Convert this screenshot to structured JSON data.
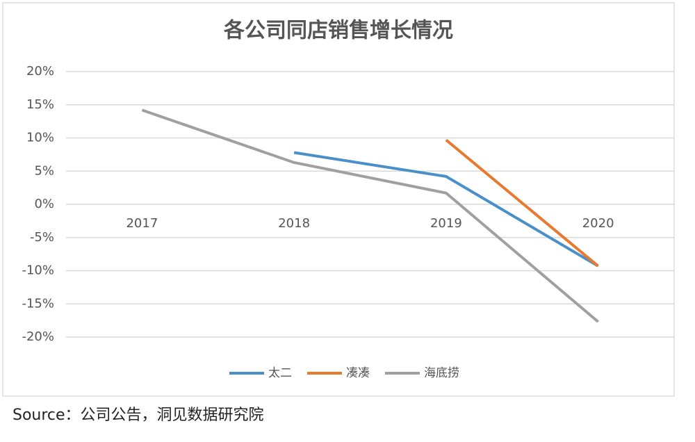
{
  "chart_data": {
    "type": "line",
    "title": "各公司同店销售增长情况",
    "categories": [
      "2017",
      "2018",
      "2019",
      "2020"
    ],
    "series": [
      {
        "name": "太二",
        "color": "#4a90c8",
        "values": [
          null,
          7.8,
          4.2,
          -9.3
        ]
      },
      {
        "name": "凑凑",
        "color": "#e87a30",
        "values": [
          null,
          null,
          9.7,
          -9.3
        ]
      },
      {
        "name": "海底捞",
        "color": "#a0a0a0",
        "values": [
          14.2,
          6.3,
          1.7,
          -17.7
        ]
      }
    ],
    "ylim": [
      -20,
      20
    ],
    "yticks": [
      {
        "value": -20,
        "label": "-20%"
      },
      {
        "value": -15,
        "label": "-15%"
      },
      {
        "value": -10,
        "label": "-10%"
      },
      {
        "value": -5,
        "label": "-5%"
      },
      {
        "value": 0,
        "label": "0%"
      },
      {
        "value": 5,
        "label": "5%"
      },
      {
        "value": 10,
        "label": "10%"
      },
      {
        "value": 15,
        "label": "15%"
      },
      {
        "value": 20,
        "label": "20%"
      }
    ],
    "grid": true
  },
  "source": "Source：公司公告，洞见数据研究院"
}
